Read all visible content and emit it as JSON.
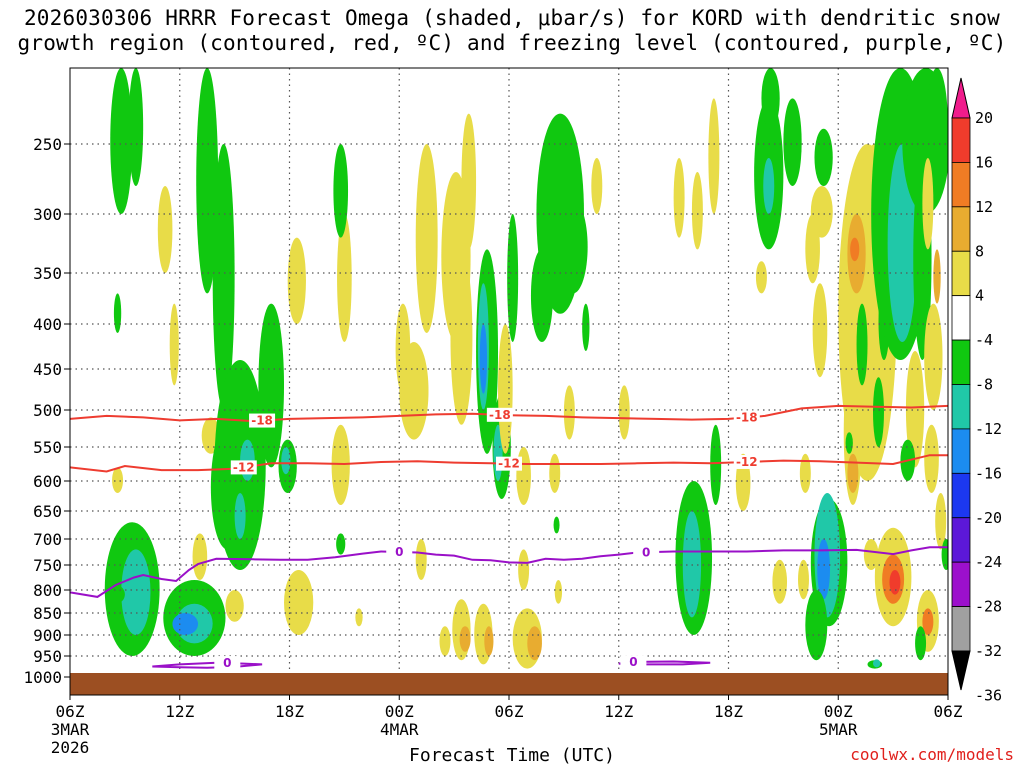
{
  "chart_data": {
    "type": "heatmap",
    "title_line1": "2026030306 HRRR Forecast Omega (shaded, μbar/s) for KORD with dendritic snow",
    "title_line2": "growth region (contoured, red, ºC) and freezing level (contoured, purple, ºC)",
    "xlabel": "Forecast Time (UTC)",
    "credit": "coolwx.com/models",
    "x_range_hours": [
      0,
      48
    ],
    "y_range_mb": [
      1000,
      200
    ],
    "y_ticks": [
      250,
      300,
      350,
      400,
      450,
      500,
      550,
      600,
      650,
      700,
      750,
      800,
      850,
      900,
      950,
      1000
    ],
    "x_ticks": [
      {
        "hour": 0,
        "label": "06Z",
        "sub1": "3MAR",
        "sub2": "2026"
      },
      {
        "hour": 6,
        "label": "12Z",
        "sub1": "",
        "sub2": ""
      },
      {
        "hour": 12,
        "label": "18Z",
        "sub1": "",
        "sub2": ""
      },
      {
        "hour": 18,
        "label": "00Z",
        "sub1": "4MAR",
        "sub2": ""
      },
      {
        "hour": 24,
        "label": "06Z",
        "sub1": "",
        "sub2": ""
      },
      {
        "hour": 30,
        "label": "12Z",
        "sub1": "",
        "sub2": ""
      },
      {
        "hour": 36,
        "label": "18Z",
        "sub1": "",
        "sub2": ""
      },
      {
        "hour": 42,
        "label": "00Z",
        "sub1": "5MAR",
        "sub2": ""
      },
      {
        "hour": 48,
        "label": "06Z",
        "sub1": "",
        "sub2": ""
      }
    ],
    "colorbar": {
      "levels": [
        "20",
        "16",
        "12",
        "8",
        "4",
        "-4",
        "-8",
        "-12",
        "-16",
        "-20",
        "-24",
        "-28",
        "-32",
        "-36"
      ],
      "colors": [
        "#f01c8c",
        "#f03c2c",
        "#f07c24",
        "#e8ac30",
        "#e8dc48",
        "#ffffff",
        "#10c810",
        "#20c8a8",
        "#1c8cf0",
        "#1c38f0",
        "#5c18d8",
        "#9c10cc",
        "#a0a0a0",
        "#000000"
      ]
    },
    "series": [
      {
        "name": "-18 C",
        "color": "#ee3c30",
        "label": "-18",
        "points": [
          [
            0,
            512
          ],
          [
            2,
            508
          ],
          [
            4,
            510
          ],
          [
            6,
            514
          ],
          [
            8,
            512
          ],
          [
            10,
            515
          ],
          [
            12,
            512
          ],
          [
            14,
            511
          ],
          [
            16,
            510
          ],
          [
            18,
            508
          ],
          [
            20,
            506
          ],
          [
            22,
            505
          ],
          [
            24,
            507
          ],
          [
            26,
            508
          ],
          [
            28,
            510
          ],
          [
            30,
            511
          ],
          [
            32,
            512
          ],
          [
            34,
            513
          ],
          [
            36,
            512
          ],
          [
            38,
            508
          ],
          [
            40,
            498
          ],
          [
            42,
            495
          ],
          [
            44,
            496
          ],
          [
            46,
            497
          ],
          [
            48,
            495
          ]
        ],
        "label_hours": [
          10.5,
          23.5,
          37
        ]
      },
      {
        "name": "-12 C",
        "color": "#ee3c30",
        "label": "-12",
        "points": [
          [
            0,
            580
          ],
          [
            2,
            586
          ],
          [
            3,
            578
          ],
          [
            5,
            584
          ],
          [
            7,
            584
          ],
          [
            9,
            582
          ],
          [
            11,
            574
          ],
          [
            13,
            574
          ],
          [
            15,
            575
          ],
          [
            17,
            572
          ],
          [
            19,
            571
          ],
          [
            21,
            573
          ],
          [
            23,
            574
          ],
          [
            25,
            575
          ],
          [
            27,
            575
          ],
          [
            29,
            575
          ],
          [
            31,
            574
          ],
          [
            33,
            573
          ],
          [
            35,
            574
          ],
          [
            37,
            572
          ],
          [
            39,
            570
          ],
          [
            41,
            571
          ],
          [
            43,
            573
          ],
          [
            45,
            575
          ],
          [
            47,
            562
          ],
          [
            48,
            562
          ]
        ],
        "label_hours": [
          9.5,
          24,
          37
        ]
      },
      {
        "name": "0 C freezing level",
        "color": "#9a10c8",
        "label": "0",
        "points": [
          [
            0,
            805
          ],
          [
            1.5,
            815
          ],
          [
            2.5,
            790
          ],
          [
            3.5,
            775
          ],
          [
            4,
            770
          ],
          [
            5,
            778
          ],
          [
            5.8,
            782
          ],
          [
            6.5,
            760
          ],
          [
            7,
            748
          ],
          [
            8,
            738
          ],
          [
            10,
            739
          ],
          [
            11.5,
            740
          ],
          [
            13,
            740
          ],
          [
            14.5,
            735
          ],
          [
            16,
            728
          ],
          [
            17,
            724
          ],
          [
            18,
            725
          ],
          [
            19,
            726
          ],
          [
            20,
            730
          ],
          [
            21,
            732
          ],
          [
            22,
            740
          ],
          [
            23,
            741
          ],
          [
            24,
            745
          ],
          [
            25,
            746
          ],
          [
            26,
            738
          ],
          [
            27,
            740
          ],
          [
            28,
            738
          ],
          [
            29,
            733
          ],
          [
            30,
            730
          ],
          [
            31,
            726
          ],
          [
            32,
            725
          ],
          [
            33,
            724
          ],
          [
            35,
            724
          ],
          [
            37,
            724
          ],
          [
            39,
            722
          ],
          [
            41,
            722
          ],
          [
            43,
            721
          ],
          [
            45,
            729
          ],
          [
            46,
            722
          ],
          [
            47,
            716
          ],
          [
            48,
            716
          ]
        ],
        "label_hours": [
          18,
          31.5
        ]
      },
      {
        "name": "0 C near-surface loop A",
        "color": "#9a10c8",
        "label": "0",
        "points": [
          [
            4.5,
            975
          ],
          [
            6,
            970
          ],
          [
            8,
            966
          ],
          [
            9.5,
            968
          ],
          [
            10.5,
            970
          ],
          [
            9,
            976
          ],
          [
            7.5,
            978
          ],
          [
            6,
            977
          ],
          [
            4.5,
            975
          ]
        ],
        "label_hours": [
          8.6
        ]
      },
      {
        "name": "0 C near-surface loop B",
        "color": "#9a10c8",
        "label": "0",
        "points": [
          [
            30,
            968
          ],
          [
            31,
            964
          ],
          [
            33,
            963
          ],
          [
            35,
            966
          ],
          [
            33.5,
            970
          ],
          [
            32,
            970
          ],
          [
            30.5,
            970
          ],
          [
            30,
            968
          ]
        ],
        "label_hours": [
          30.8
        ]
      }
    ],
    "shaded_regions": [
      {
        "color": "#10c810",
        "cells": [
          [
            1,
            2.5,
            640,
            850
          ],
          [
            2.5,
            4.5,
            690,
            940
          ],
          [
            6,
            7.5,
            600,
            980
          ],
          [
            8,
            9.5,
            440,
            640
          ],
          [
            9,
            11,
            380,
            580
          ],
          [
            11.5,
            13,
            520,
            560
          ],
          [
            14.5,
            15.5,
            560,
            580
          ],
          [
            21,
            22,
            680,
            700
          ]
        ]
      }
    ]
  }
}
